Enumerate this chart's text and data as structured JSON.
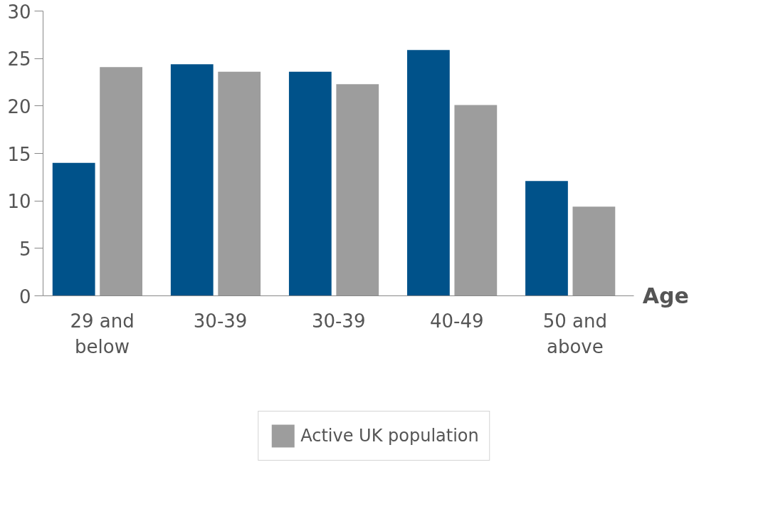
{
  "chart_data": {
    "type": "bar",
    "xlabel": "Age",
    "categories": [
      "29 and\nbelow",
      "30-39",
      "30-39",
      "40-49",
      "50 and\nabove"
    ],
    "series": [
      {
        "color": "#00528a",
        "values": [
          14,
          24.4,
          23.6,
          25.9,
          12.1
        ]
      },
      {
        "name": "Active UK population",
        "color": "#9d9d9d",
        "values": [
          24.1,
          23.6,
          22.3,
          20.1,
          9.4
        ]
      }
    ],
    "ylim": [
      0,
      30
    ],
    "yticks": [
      0,
      5,
      10,
      15,
      20,
      25,
      30
    ],
    "grid": false,
    "legend": "bottom"
  }
}
